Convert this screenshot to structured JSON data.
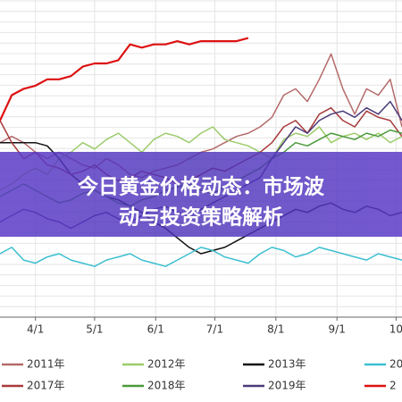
{
  "chart_data": {
    "type": "line",
    "x": [
      -18,
      -12,
      -6,
      0,
      6,
      12,
      18,
      24,
      30,
      36,
      42,
      48,
      54,
      60,
      66,
      72,
      78,
      84,
      90,
      96,
      102,
      108,
      114,
      120,
      126,
      132,
      138,
      144,
      150,
      156,
      162,
      168,
      174,
      180,
      186
    ],
    "xlim": [
      -18,
      186
    ],
    "xticks": [
      {
        "value": 0,
        "label": "4/1"
      },
      {
        "value": 30,
        "label": "5/1"
      },
      {
        "value": 61,
        "label": "6/1"
      },
      {
        "value": 91,
        "label": "7/1"
      },
      {
        "value": 122,
        "label": "8/1"
      },
      {
        "value": 153,
        "label": "9/1"
      },
      {
        "value": 183,
        "label": "10"
      }
    ],
    "ylim": [
      0,
      100
    ],
    "grid": true,
    "series": [
      {
        "name": "2011年",
        "color": "#b46a6a",
        "values": [
          55,
          57,
          55,
          52,
          50,
          52,
          50,
          48,
          47,
          50,
          48,
          45,
          44,
          46,
          47,
          48,
          50,
          52,
          53,
          55,
          57,
          58,
          60,
          63,
          70,
          72,
          68,
          75,
          83,
          72,
          64,
          72,
          70,
          75,
          60
        ]
      },
      {
        "name": "2012年",
        "color": "#9ccb6a",
        "values": [
          40,
          42,
          45,
          47,
          45,
          50,
          52,
          55,
          53,
          56,
          58,
          55,
          52,
          56,
          58,
          57,
          55,
          58,
          60,
          56,
          55,
          54,
          52,
          50,
          56,
          58,
          57,
          60,
          55,
          57,
          58,
          56,
          58,
          55,
          57
        ]
      },
      {
        "name": "2013年",
        "color": "#111111",
        "values": [
          55,
          55,
          55,
          55,
          54,
          50,
          45,
          42,
          40,
          38,
          37,
          35,
          33,
          30,
          28,
          25,
          22,
          20,
          21,
          22,
          24,
          26,
          28,
          30,
          32,
          34,
          33,
          35,
          36,
          34,
          33,
          35,
          34,
          32,
          33
        ]
      },
      {
        "name": "20",
        "color": "#3bbfd0",
        "values": [
          20,
          22,
          18,
          17,
          19,
          20,
          18,
          17,
          16,
          18,
          19,
          20,
          18,
          17,
          16,
          18,
          20,
          22,
          21,
          19,
          18,
          17,
          20,
          22,
          21,
          19,
          20,
          22,
          21,
          20,
          19,
          18,
          20,
          19,
          18
        ]
      },
      {
        "name": "2017年",
        "color": "#a83a3a",
        "values": [
          62,
          55,
          50,
          52,
          48,
          47,
          45,
          46,
          48,
          45,
          43,
          44,
          46,
          45,
          44,
          42,
          43,
          45,
          47,
          46,
          48,
          50,
          52,
          55,
          60,
          62,
          58,
          64,
          66,
          62,
          60,
          65,
          63,
          62,
          57
        ]
      },
      {
        "name": "2018年",
        "color": "#4a9a3a",
        "values": [
          38,
          40,
          42,
          40,
          38,
          36,
          37,
          39,
          40,
          38,
          36,
          35,
          37,
          38,
          40,
          41,
          42,
          40,
          39,
          41,
          43,
          45,
          47,
          50,
          52,
          55,
          54,
          56,
          58,
          57,
          56,
          58,
          57,
          59,
          58
        ]
      },
      {
        "name": "2019年",
        "color": "#4b3a78",
        "values": [
          30,
          32,
          34,
          33,
          31,
          30,
          28,
          30,
          32,
          33,
          31,
          30,
          32,
          34,
          35,
          33,
          32,
          34,
          36,
          38,
          40,
          42,
          44,
          50,
          55,
          60,
          58,
          62,
          64,
          65,
          63,
          66,
          64,
          68,
          62
        ]
      },
      {
        "name": "2",
        "color": "#dd1111",
        "values": [
          62,
          70,
          72,
          73,
          75,
          75,
          76,
          79,
          80,
          80,
          81,
          86,
          85,
          86,
          86,
          87,
          86,
          87,
          87,
          87,
          87,
          88,
          null,
          null,
          null,
          null,
          null,
          null,
          null,
          null,
          null,
          null,
          null,
          null,
          null
        ]
      }
    ]
  },
  "banner": {
    "lines": [
      "今日黄金价格动态：市场波",
      "动与投资策略解析"
    ]
  }
}
